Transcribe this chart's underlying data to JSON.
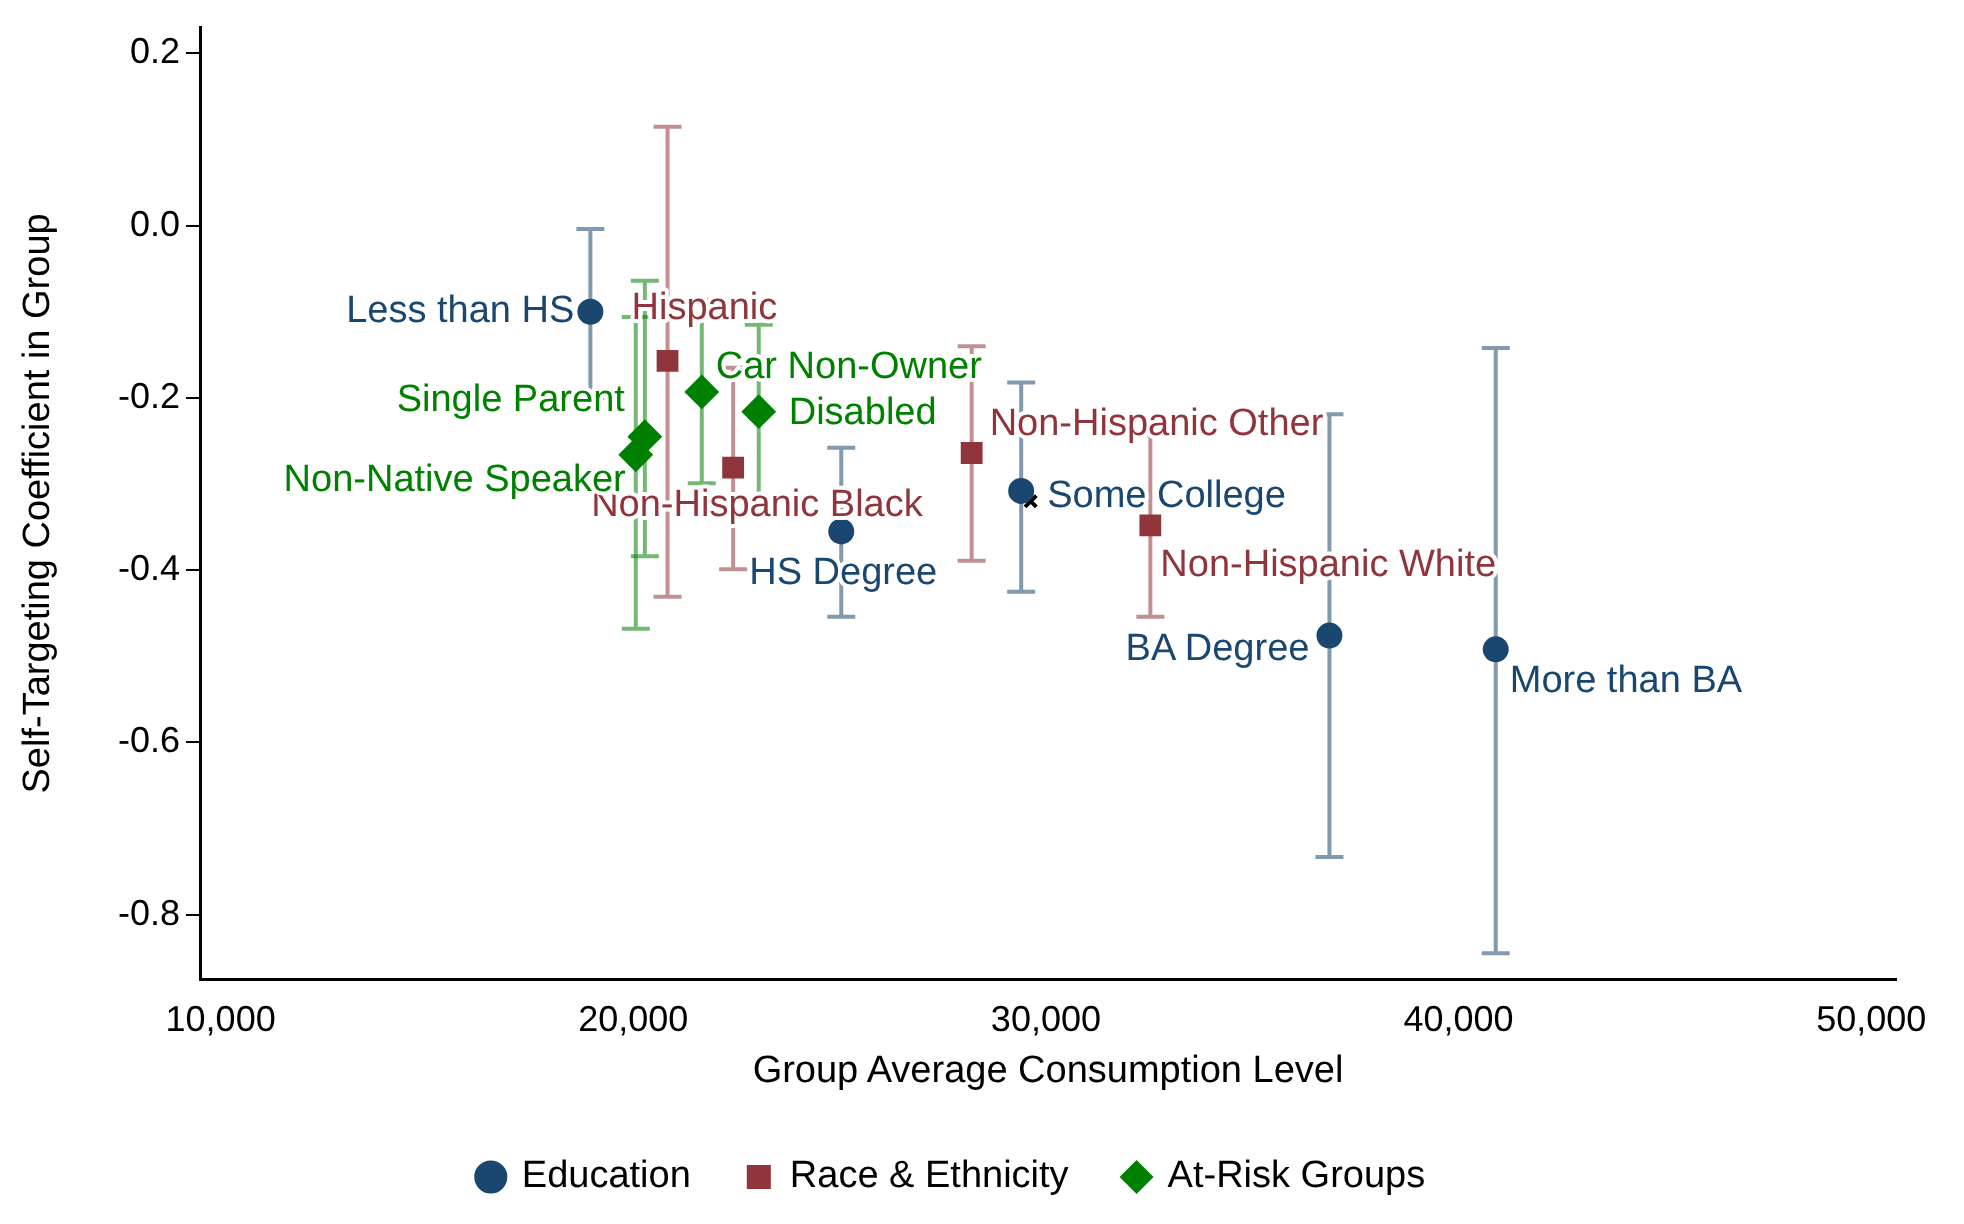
{
  "chart_data": {
    "type": "scatter",
    "xlabel": "Group Average Consumption Level",
    "ylabel": "Self-Targeting Coefficient in Group",
    "xlim": [
      9500,
      50600
    ],
    "ylim": [
      -0.875,
      0.23
    ],
    "xticks": [
      {
        "value": 10000,
        "label": "10,000"
      },
      {
        "value": 20000,
        "label": "20,000"
      },
      {
        "value": 30000,
        "label": "30,000"
      },
      {
        "value": 40000,
        "label": "40,000"
      },
      {
        "value": 50000,
        "label": "50,000"
      }
    ],
    "yticks": [
      {
        "value": 0.2,
        "label": "0.2"
      },
      {
        "value": 0,
        "label": "0.0"
      },
      {
        "value": -0.2,
        "label": "-0.2"
      },
      {
        "value": -0.4,
        "label": "-0.4"
      },
      {
        "value": -0.6,
        "label": "-0.6"
      },
      {
        "value": -0.8,
        "label": "-0.8"
      }
    ],
    "grid": false,
    "legend": "bottom",
    "series": [
      {
        "name": "Education",
        "color": "#1a476f",
        "marker": "circle",
        "x": [
          18960,
          25040,
          29400,
          36870,
          40900
        ],
        "values": [
          -0.1,
          -0.355,
          -0.308,
          -0.476,
          -0.492
        ],
        "errors": [
          [
            -0.2,
            -0.004
          ],
          [
            -0.454,
            -0.258
          ],
          [
            -0.425,
            -0.182
          ],
          [
            -0.733,
            -0.219
          ],
          [
            -0.845,
            -0.142
          ]
        ]
      },
      {
        "name": "Race & Ethnicity",
        "color": "#90353b",
        "marker": "square",
        "x": [
          20830,
          22420,
          28200,
          32530
        ],
        "values": [
          -0.157,
          -0.281,
          -0.264,
          -0.348
        ],
        "errors": [
          [
            -0.431,
            0.115
          ],
          [
            -0.399,
            -0.165
          ],
          [
            -0.389,
            -0.14
          ],
          [
            -0.454,
            -0.243
          ]
        ]
      },
      {
        "name": "At-Risk Groups",
        "color": "#008000",
        "marker": "diamond",
        "x": [
          21660,
          23040,
          20280,
          20060
        ],
        "values": [
          -0.193,
          -0.216,
          -0.245,
          -0.266
        ],
        "errors": [
          [
            -0.299,
            -0.086
          ],
          [
            -0.32,
            -0.115
          ],
          [
            -0.384,
            -0.064
          ],
          [
            -0.468,
            -0.106
          ]
        ]
      },
      {
        "color": "#000000",
        "marker": "cross",
        "x": [
          29630
        ],
        "values": [
          -0.32
        ]
      }
    ],
    "annotations": [
      {
        "text": "Less than HS",
        "x": 18960,
        "y": -0.1
      },
      {
        "text": "HS Degree",
        "x": 25040,
        "y": -0.355
      },
      {
        "text": "Some College",
        "x": 29400,
        "y": -0.308
      },
      {
        "text": "BA Degree",
        "x": 36870,
        "y": -0.476
      },
      {
        "text": "More than BA",
        "x": 40900,
        "y": -0.492
      },
      {
        "text": "Hispanic",
        "x": 20830,
        "y": -0.157
      },
      {
        "text": "Non-Hispanic Black",
        "x": 22420,
        "y": -0.281
      },
      {
        "text": "Non-Hispanic Other",
        "x": 28200,
        "y": -0.264
      },
      {
        "text": "Non-Hispanic White",
        "x": 32530,
        "y": -0.348
      },
      {
        "text": "Car Non-Owner",
        "x": 21660,
        "y": -0.193
      },
      {
        "text": "Disabled",
        "x": 23040,
        "y": -0.216
      },
      {
        "text": "Single Parent",
        "x": 20280,
        "y": -0.245
      },
      {
        "text": "Non-Native Speaker",
        "x": 20060,
        "y": -0.266
      }
    ]
  }
}
